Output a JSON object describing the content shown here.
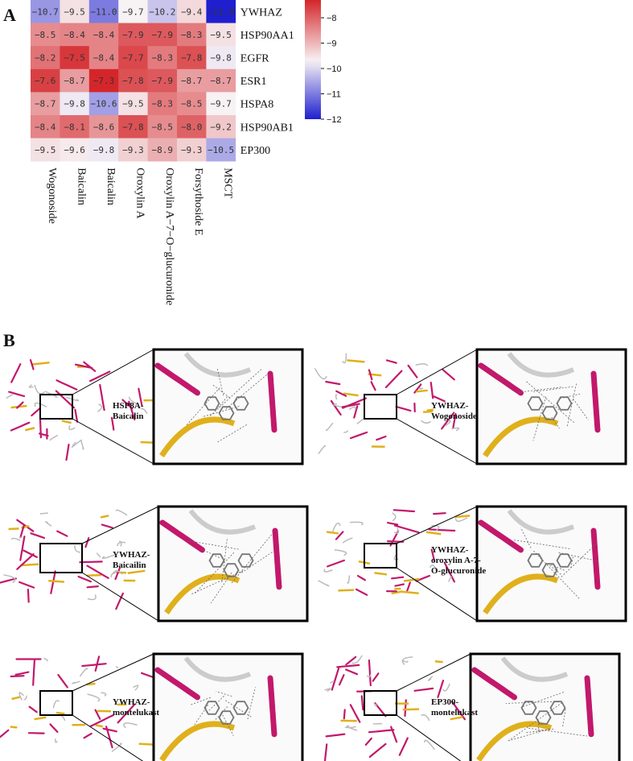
{
  "panel_a_label": "A",
  "panel_b_label": "B",
  "chart_data": {
    "type": "heatmap",
    "rows": [
      "YWHAZ",
      "HSP90AA1",
      "EGFR",
      "ESR1",
      "HSPA8",
      "HSP90AB1",
      "EP300"
    ],
    "columns": [
      "Wogonoside",
      "Baicalin",
      "Baicalin",
      "Oroxylin A",
      "Oroxylin A−7−O−glucuronide",
      "Forsythoside E",
      "MSCT"
    ],
    "values": [
      [
        -10.7,
        -9.5,
        -11.0,
        -9.7,
        -10.2,
        -9.4,
        -12.0
      ],
      [
        -8.5,
        -8.4,
        -8.4,
        -7.9,
        -7.9,
        -8.3,
        -9.5
      ],
      [
        -8.2,
        -7.5,
        -8.4,
        -7.7,
        -8.3,
        -7.8,
        -9.8
      ],
      [
        -7.6,
        -8.7,
        -7.3,
        -7.8,
        -7.9,
        -8.7,
        -8.7
      ],
      [
        -8.7,
        -9.8,
        -10.6,
        -9.5,
        -8.3,
        -8.5,
        -9.7
      ],
      [
        -8.4,
        -8.1,
        -8.6,
        -7.8,
        -8.5,
        -8.0,
        -9.2
      ],
      [
        -9.5,
        -9.6,
        -9.8,
        -9.3,
        -8.9,
        -9.3,
        -10.5
      ]
    ],
    "colorbar": {
      "min": -12,
      "max": -7.3,
      "ticks": [
        -8,
        -9,
        -10,
        -11,
        -12
      ],
      "colors": [
        "#1f1fcf",
        "#f7f2f4",
        "#d4262a"
      ]
    }
  },
  "complexes": [
    {
      "label": "HSP8A-\nBaicalin"
    },
    {
      "label": "YWHAZ-\nWogonoside"
    },
    {
      "label": "YWHAZ-\nBaicailin"
    },
    {
      "label": "YWHAZ-\noroxylin A-7-\nO-glucuronide"
    },
    {
      "label": "YWHAZ-\nmontelukast"
    },
    {
      "label": "EP300-\nmontelukast"
    }
  ]
}
